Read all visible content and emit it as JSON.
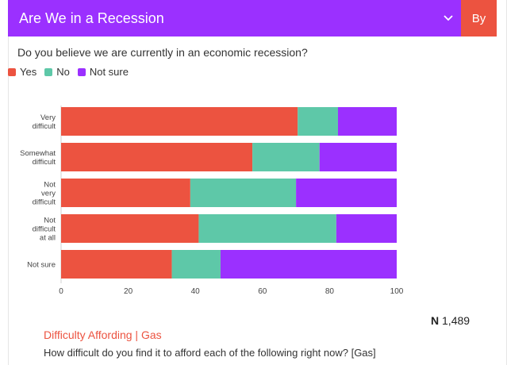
{
  "header": {
    "title": "Are We in a Recession",
    "by_label": "By",
    "chevron_icon": "chevron-down-icon",
    "color": "#9b30ff",
    "by_color": "#ec5340"
  },
  "question": "Do you believe we are currently in an economic recession?",
  "legend": [
    {
      "label": "Yes",
      "color": "#ec5340"
    },
    {
      "label": "No",
      "color": "#5ec8a8"
    },
    {
      "label": "Not sure",
      "color": "#9b30ff"
    }
  ],
  "chart_data": {
    "type": "bar",
    "orientation": "horizontal",
    "stacked": true,
    "categories": [
      [
        "Very",
        "difficult"
      ],
      [
        "Somewhat",
        "difficult"
      ],
      [
        "Not",
        "very",
        "difficult"
      ],
      [
        "Not",
        "difficult",
        "at all"
      ],
      [
        "Not sure"
      ]
    ],
    "series": [
      {
        "name": "Yes",
        "color": "#ec5340",
        "values": [
          70.5,
          57,
          38.5,
          41,
          33
        ]
      },
      {
        "name": "No",
        "color": "#5ec8a8",
        "values": [
          12,
          20,
          31.5,
          41,
          14.5
        ]
      },
      {
        "name": "Not sure",
        "color": "#9b30ff",
        "values": [
          17.5,
          23,
          30,
          18,
          52.5
        ]
      }
    ],
    "xlim": [
      0,
      100
    ],
    "xticks": [
      "0",
      "20",
      "40",
      "60",
      "80",
      "100"
    ],
    "title": "",
    "xlabel": "",
    "ylabel": ""
  },
  "n": {
    "prefix": "N",
    "value": "1,489"
  },
  "footer": {
    "title": "Difficulty Affording | Gas",
    "question": "How difficult do you find it to afford each of the following right now? [Gas]"
  }
}
